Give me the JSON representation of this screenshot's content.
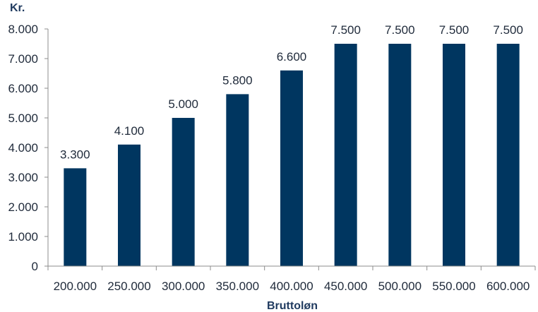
{
  "chart_data": {
    "type": "bar",
    "title": "",
    "ylabel": "Kr.",
    "xlabel": "Bruttoløn",
    "categories": [
      "200.000",
      "250.000",
      "300.000",
      "350.000",
      "400.000",
      "450.000",
      "500.000",
      "550.000",
      "600.000"
    ],
    "values": [
      3300,
      4100,
      5000,
      5800,
      6600,
      7500,
      7500,
      7500,
      7500
    ],
    "value_labels": [
      "3.300",
      "4.100",
      "5.000",
      "5.800",
      "6.600",
      "7.500",
      "7.500",
      "7.500",
      "7.500"
    ],
    "ylim": [
      0,
      8000
    ],
    "yticks": [
      0,
      1000,
      2000,
      3000,
      4000,
      5000,
      6000,
      7000,
      8000
    ],
    "ytick_labels": [
      "0",
      "1.000",
      "2.000",
      "3.000",
      "4.000",
      "5.000",
      "6.000",
      "7.000",
      "8.000"
    ],
    "grid": false,
    "legend": "none",
    "colors": {
      "bar": "#003660",
      "axis": "#8c8c8c",
      "text": "#1f2a3a",
      "axis_title": "#1f3a5f"
    }
  }
}
